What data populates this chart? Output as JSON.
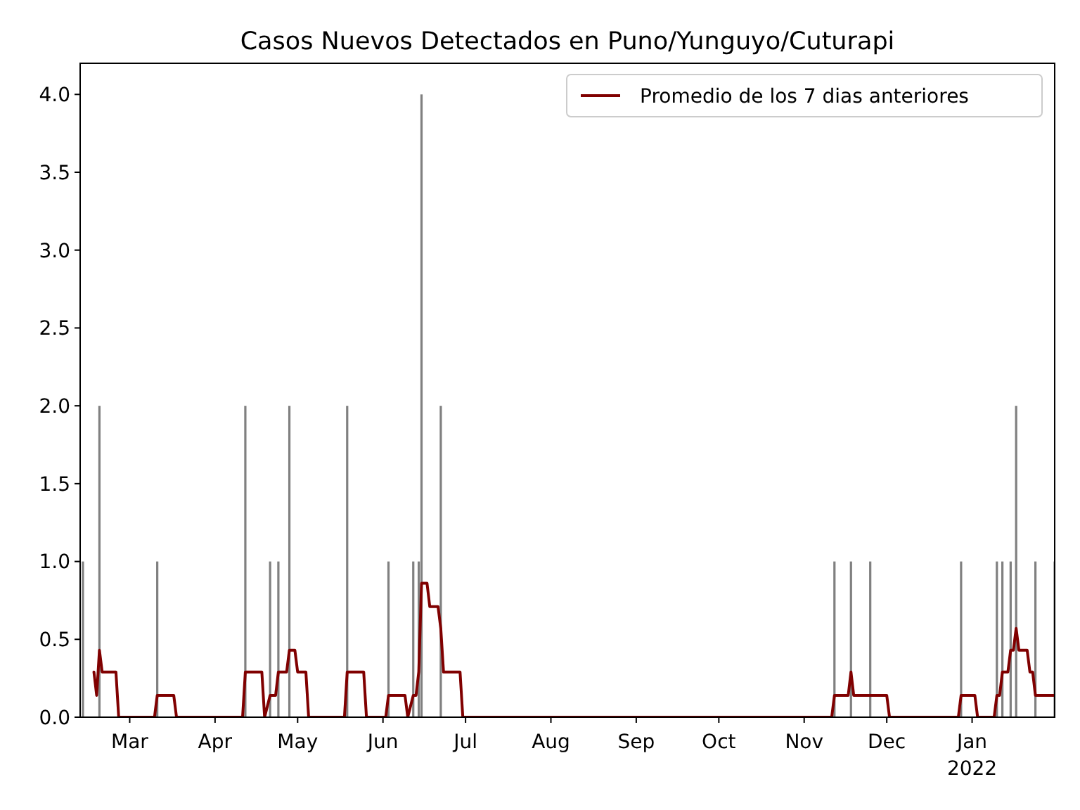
{
  "chart_data": {
    "type": "bar",
    "title": "Casos Nuevos Detectados en Puno/Yunguyo/Cuturapi",
    "xlim": [
      "2021-02-11",
      "2022-01-31"
    ],
    "xticks": [
      {
        "value": "2021-03-01",
        "label": "Mar"
      },
      {
        "value": "2021-04-01",
        "label": "Apr"
      },
      {
        "value": "2021-05-01",
        "label": "May"
      },
      {
        "value": "2021-06-01",
        "label": "Jun"
      },
      {
        "value": "2021-07-01",
        "label": "Jul"
      },
      {
        "value": "2021-08-01",
        "label": "Aug"
      },
      {
        "value": "2021-09-01",
        "label": "Sep"
      },
      {
        "value": "2021-10-01",
        "label": "Oct"
      },
      {
        "value": "2021-11-01",
        "label": "Nov"
      },
      {
        "value": "2021-12-01",
        "label": "Dec"
      },
      {
        "value": "2022-01-01",
        "label": "Jan\n2022"
      }
    ],
    "ylim": [
      0,
      4.2
    ],
    "yticks": [
      {
        "value": 0,
        "label": "0.0"
      },
      {
        "value": 0.5,
        "label": "0.5"
      },
      {
        "value": 1,
        "label": "1.0"
      },
      {
        "value": 1.5,
        "label": "1.5"
      },
      {
        "value": 2,
        "label": "2.0"
      },
      {
        "value": 2.5,
        "label": "2.5"
      },
      {
        "value": 3,
        "label": "3.0"
      },
      {
        "value": 3.5,
        "label": "3.5"
      },
      {
        "value": 4,
        "label": "4.0"
      }
    ],
    "legend": "top right",
    "grid": false,
    "series": [
      {
        "color": "#808080",
        "x": [
          "2021-02-12",
          "2021-02-18",
          "2021-03-11",
          "2021-04-12",
          "2021-04-21",
          "2021-04-24",
          "2021-04-28",
          "2021-05-19",
          "2021-06-03",
          "2021-06-12",
          "2021-06-14",
          "2021-06-15",
          "2021-06-22",
          "2021-11-12",
          "2021-11-18",
          "2021-11-25",
          "2021-12-28",
          "2022-01-10",
          "2022-01-12",
          "2022-01-15",
          "2022-01-17",
          "2022-01-24",
          "2022-01-31"
        ],
        "values": [
          1,
          2,
          1,
          2,
          1,
          1,
          2,
          2,
          1,
          1,
          1,
          4,
          2,
          1,
          1,
          1,
          1,
          1,
          1,
          1,
          2,
          1,
          1
        ]
      },
      {
        "type": "line",
        "name": "Promedio de los 7 dias anteriores",
        "color": "#800000",
        "x": [
          "2021-02-16",
          "2021-02-17",
          "2021-02-18",
          "2021-02-19",
          "2021-02-24",
          "2021-02-25",
          "2021-03-10",
          "2021-03-11",
          "2021-03-17",
          "2021-03-18",
          "2021-04-11",
          "2021-04-12",
          "2021-04-18",
          "2021-04-19",
          "2021-04-21",
          "2021-04-23",
          "2021-04-24",
          "2021-04-27",
          "2021-04-28",
          "2021-04-30",
          "2021-05-01",
          "2021-05-04",
          "2021-05-05",
          "2021-05-18",
          "2021-05-19",
          "2021-05-25",
          "2021-05-26",
          "2021-06-02",
          "2021-06-03",
          "2021-06-09",
          "2021-06-10",
          "2021-06-12",
          "2021-06-13",
          "2021-06-14",
          "2021-06-15",
          "2021-06-17",
          "2021-06-18",
          "2021-06-21",
          "2021-06-22",
          "2021-06-23",
          "2021-06-29",
          "2021-06-30",
          "2021-11-11",
          "2021-11-12",
          "2021-11-17",
          "2021-11-18",
          "2021-11-19",
          "2021-12-01",
          "2021-12-02",
          "2021-12-27",
          "2021-12-28",
          "2022-01-02",
          "2022-01-03",
          "2022-01-09",
          "2022-01-10",
          "2022-01-11",
          "2022-01-12",
          "2022-01-14",
          "2022-01-15",
          "2022-01-16",
          "2022-01-17",
          "2022-01-18",
          "2022-01-21",
          "2022-01-22",
          "2022-01-23",
          "2022-01-24",
          "2022-01-31"
        ],
        "values": [
          0.29,
          0.14,
          0.43,
          0.29,
          0.29,
          0,
          0,
          0.14,
          0.14,
          0,
          0,
          0.29,
          0.29,
          0,
          0.14,
          0.14,
          0.29,
          0.29,
          0.43,
          0.43,
          0.29,
          0.29,
          0,
          0,
          0.29,
          0.29,
          0,
          0,
          0.14,
          0.14,
          0,
          0.14,
          0.14,
          0.29,
          0.86,
          0.86,
          0.71,
          0.71,
          0.57,
          0.29,
          0.29,
          0,
          0,
          0.14,
          0.14,
          0.29,
          0.14,
          0.14,
          0,
          0,
          0.14,
          0.14,
          0,
          0,
          0.14,
          0.14,
          0.29,
          0.29,
          0.43,
          0.43,
          0.57,
          0.43,
          0.43,
          0.29,
          0.29,
          0.14,
          0.14
        ]
      }
    ]
  }
}
